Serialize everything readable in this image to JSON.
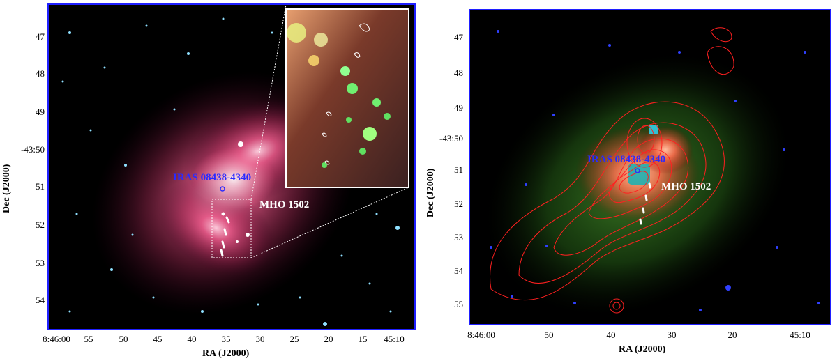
{
  "left_panel": {
    "source_label": "IRAS 08438-4340",
    "outflow_label": "MHO 1502",
    "y_ticks": [
      "47",
      "48",
      "49",
      "-43:50",
      "51",
      "52",
      "53",
      "54"
    ],
    "x_ticks": [
      "8:46:00",
      "55",
      "50",
      "45",
      "40",
      "35",
      "30",
      "25",
      "20",
      "15",
      "45:10"
    ],
    "y_label": "Dec (J2000)",
    "x_label": "RA (J2000)"
  },
  "right_panel": {
    "source_label": "IRAS 08438-4340",
    "outflow_label": "MHO 1502",
    "y_ticks": [
      "47",
      "48",
      "49",
      "-43:50",
      "51",
      "52",
      "53",
      "54",
      "55"
    ],
    "x_ticks": [
      "8:46:00",
      "50",
      "40",
      "30",
      "20",
      "45:10"
    ],
    "y_label": "Dec (J2000)",
    "x_label": "RA (J2000)"
  },
  "colors": {
    "frame": "#1f1fff",
    "source_label": "#2a2aff",
    "outflow_label": "#ffffff",
    "contours": "#ff2020"
  }
}
